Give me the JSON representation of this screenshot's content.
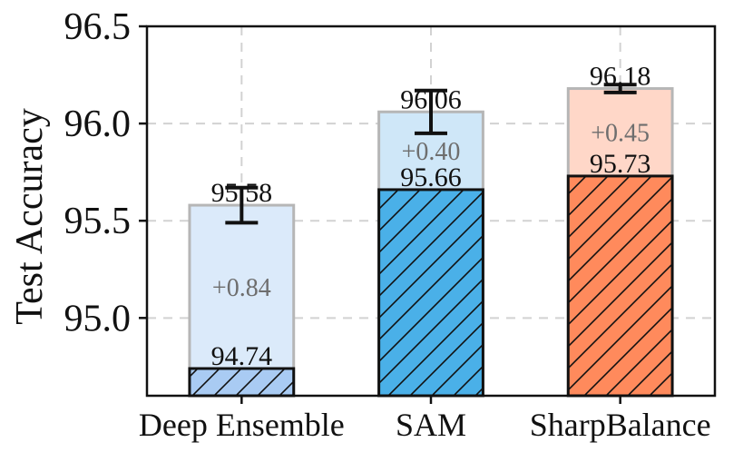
{
  "chart_data": {
    "type": "bar",
    "categories": [
      "Deep Ensemble",
      "SAM",
      "SharpBalance"
    ],
    "series": [
      {
        "name": "base",
        "values": [
          94.74,
          95.66,
          95.73
        ]
      },
      {
        "name": "improved",
        "values": [
          95.58,
          96.06,
          96.18
        ]
      }
    ],
    "deltas": [
      "+0.84",
      "+0.40",
      "+0.45"
    ],
    "errors": [
      0.09,
      0.11,
      0.02
    ],
    "base_labels": [
      "94.74",
      "95.66",
      "95.73"
    ],
    "top_labels": [
      "95.58",
      "96.06",
      "96.18"
    ],
    "ylabel": "Test Accuracy",
    "xlabel": "",
    "ylim": [
      94.6,
      96.5
    ],
    "yticks": [
      95.0,
      95.5,
      96.0,
      96.5
    ],
    "ytick_labels": [
      "95.0",
      "95.5",
      "96.0",
      "96.5"
    ],
    "grid": true,
    "colors": {
      "base": [
        "#a9cbf3",
        "#4ab0e8",
        "#ff8a5c"
      ],
      "improved": [
        "#dbeafa",
        "#cfe7f8",
        "#ffd7c8"
      ],
      "improved_edge": "#b6b6b6",
      "base_edge": "#111111",
      "grid": "#d2d2d2",
      "axis": "#111111"
    }
  }
}
